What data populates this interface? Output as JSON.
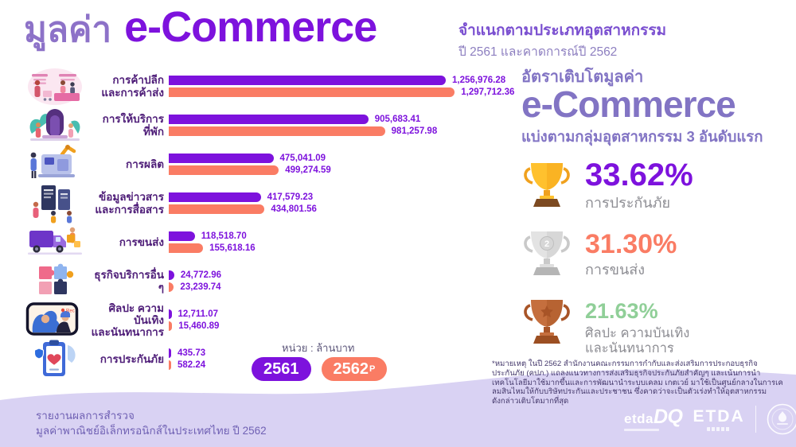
{
  "header": {
    "title_light": "มูลค่า",
    "title_bold": "e-Commerce",
    "subtitle_line1": "จำแนกตามประเภทอุตสาหกรรม",
    "subtitle_line2": "ปี 2561 และคาดการณ์ปี 2562"
  },
  "chart_data": {
    "type": "bar",
    "orientation": "horizontal",
    "title": "มูลค่า e-Commerce จำแนกตามประเภทอุตสาหกรรม ปี 2561 และคาดการณ์ปี 2562",
    "unit": "หน่วย : ล้านบาท",
    "categories": [
      "การค้าปลีกและการค้าส่ง",
      "การให้บริการที่พัก",
      "การผลิต",
      "ข้อมูลข่าวสารและการสื่อสาร",
      "การขนส่ง",
      "ธุรกิจบริการอื่น ๆ",
      "ศิลปะ ความบันเทิงและนันทนาการ",
      "การประกันภัย"
    ],
    "series": [
      {
        "name": "2561",
        "color": "#7d12dd",
        "values": [
          1256976.28,
          905683.41,
          475041.09,
          417579.23,
          118518.7,
          24772.96,
          12711.07,
          435.73
        ]
      },
      {
        "name": "2562P",
        "color": "#fa7c64",
        "values": [
          1297712.36,
          981257.98,
          499274.59,
          434801.56,
          155618.16,
          23239.74,
          15460.89,
          582.24
        ]
      }
    ],
    "legend": [
      {
        "label": "2561",
        "sup": "",
        "color": "#7d12dd"
      },
      {
        "label": "2562",
        "sup": "P",
        "color": "#fa7c64"
      }
    ],
    "rows": [
      {
        "icon": "retail",
        "label": "การค้าปลีก\nและการค้าส่ง",
        "display": [
          "1,256,976.28",
          "1,297,712.36"
        ]
      },
      {
        "icon": "hotel",
        "label": "การให้บริการ\nที่พัก",
        "display": [
          "905,683.41",
          "981,257.98"
        ]
      },
      {
        "icon": "factory",
        "label": "การผลิต",
        "display": [
          "475,041.09",
          "499,274.59"
        ]
      },
      {
        "icon": "info",
        "label": "ข้อมูลข่าวสาร\nและการสื่อสาร",
        "display": [
          "417,579.23",
          "434,801.56"
        ]
      },
      {
        "icon": "transport",
        "label": "การขนส่ง",
        "display": [
          "118,518.70",
          "155,618.16"
        ]
      },
      {
        "icon": "services",
        "label": "ธุรกิจบริการอื่น ๆ",
        "display": [
          "24,772.96",
          "23,239.74"
        ]
      },
      {
        "icon": "media",
        "label": "ศิลปะ ความบันเทิง\nและนันทนาการ",
        "display": [
          "12,711.07",
          "15,460.89"
        ]
      },
      {
        "icon": "insurance",
        "label": "การประกันภัย",
        "display": [
          "435.73",
          "582.24"
        ]
      }
    ]
  },
  "growth_panel": {
    "heading_line1": "อัตราเติบโตมูลค่า",
    "heading_line2": "e-Commerce",
    "heading_line3": "แบ่งตามกลุ่มอุตสาหกรรม 3 อันดับแรก",
    "ranks": [
      {
        "rank": 1,
        "trophy": "gold",
        "percent": "33.62%",
        "label": "การประกันภัย",
        "color": "#7d12dd"
      },
      {
        "rank": 2,
        "trophy": "silver",
        "percent": "31.30%",
        "label": "การขนส่ง",
        "color": "#fa7c64"
      },
      {
        "rank": 3,
        "trophy": "bronze",
        "percent": "21.63%",
        "label": "ศิลปะ ความบันเทิง\nและนันทนาการ",
        "color": "#90cf98"
      }
    ],
    "footnote": "*หมายเหตุ ในปี 2562 สำนักงานคณะกรรมการกำกับและส่งเสริมการประกอบธุรกิจ\nประกันภัย (คปภ.) แถลงแนวทางการส่งเสริมธุรกิจประกันภัยสำคัญๆ และเน้นการนำ\nเทคโนโลยีมาใช้มากขึ้นและการพัฒนานำระบบเคลม เกตเวย์ มาใช้เป็นศูนย์กลางในการเค\nลมสินไหมให้กับบริษัทประกันและประชาชน ซึ่งคาดว่าจะเป็นตัวเร่งทำให้อุตสาหกรรม\nดังกล่าวเติบโตมากที่สุด"
  },
  "footer": {
    "source_line1": "รายงานผลการสำรวจ",
    "source_line2": "มูลค่าพาณิชย์อิเล็กทรอนิกส์ในประเทศไทย ปี 2562",
    "logos": {
      "etda_dq_a": "etda",
      "etda_dq_b": "DQ",
      "etda": "ETDA"
    }
  },
  "icon_texts": {
    "rec": "Rec",
    "silver_rank": "2"
  },
  "colors": {
    "purple": "#7d12dd",
    "salmon": "#fa7c64",
    "green": "#90cf98",
    "title_lavender": "#8d72c8",
    "panel_purple": "#8274c4",
    "category_dark": "#4e1d78",
    "wave_lavender": "#d9d2f3"
  }
}
